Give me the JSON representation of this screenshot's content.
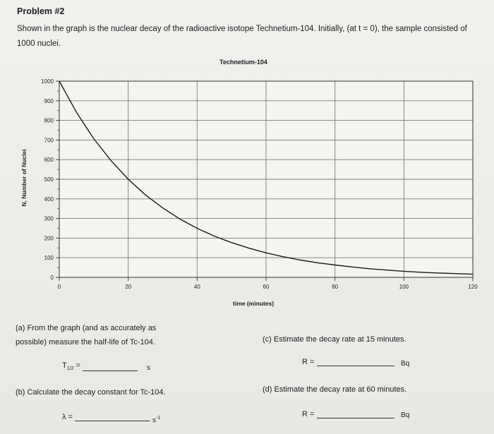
{
  "problem": {
    "heading": "Problem #2",
    "intro": "Shown in the graph is the nuclear decay of the radioactive isotope Technetium-104. Initially, (at t = 0), the sample consisted of 1000 nuclei."
  },
  "chart_data": {
    "type": "line",
    "title": "Technetium-104",
    "xlabel": "time (minutes)",
    "ylabel": "N, Number of Nuclei",
    "xlim": [
      0,
      120
    ],
    "ylim": [
      0,
      1000
    ],
    "x_ticks": [
      0,
      20,
      40,
      60,
      80,
      100,
      120
    ],
    "y_ticks": [
      0,
      100,
      200,
      300,
      400,
      500,
      600,
      700,
      800,
      900,
      1000
    ],
    "grid": true,
    "series": [
      {
        "x": [
          0,
          5,
          10,
          15,
          20,
          25,
          30,
          35,
          40,
          45,
          50,
          55,
          60,
          65,
          70,
          75,
          80,
          85,
          90,
          95,
          100,
          105,
          110,
          115,
          120
        ],
        "y": [
          1000,
          841,
          707,
          595,
          500,
          420,
          354,
          297,
          250,
          210,
          177,
          149,
          125,
          105,
          88,
          74,
          63,
          53,
          44,
          37,
          31,
          26,
          22,
          19,
          16
        ],
        "color": "#1a1a1a"
      }
    ]
  },
  "questions": {
    "a_line1": "(a) From the graph (and as accurately as",
    "a_line2": "possible) measure the half-life of Tc-104.",
    "a_symbol": "T",
    "a_sub": "1/2",
    "a_eq": " =",
    "a_unit": "s",
    "b": "(b) Calculate the decay constant for Tc-104.",
    "b_symbol": "λ =",
    "b_unit": "s",
    "b_unit_exp": "-1",
    "c": "(c) Estimate the decay rate at 15 minutes.",
    "c_symbol": "R =",
    "c_unit": "Bq",
    "d": "(d) Estimate the decay rate at 60 minutes.",
    "d_symbol": "R =",
    "d_unit": "Bq"
  }
}
